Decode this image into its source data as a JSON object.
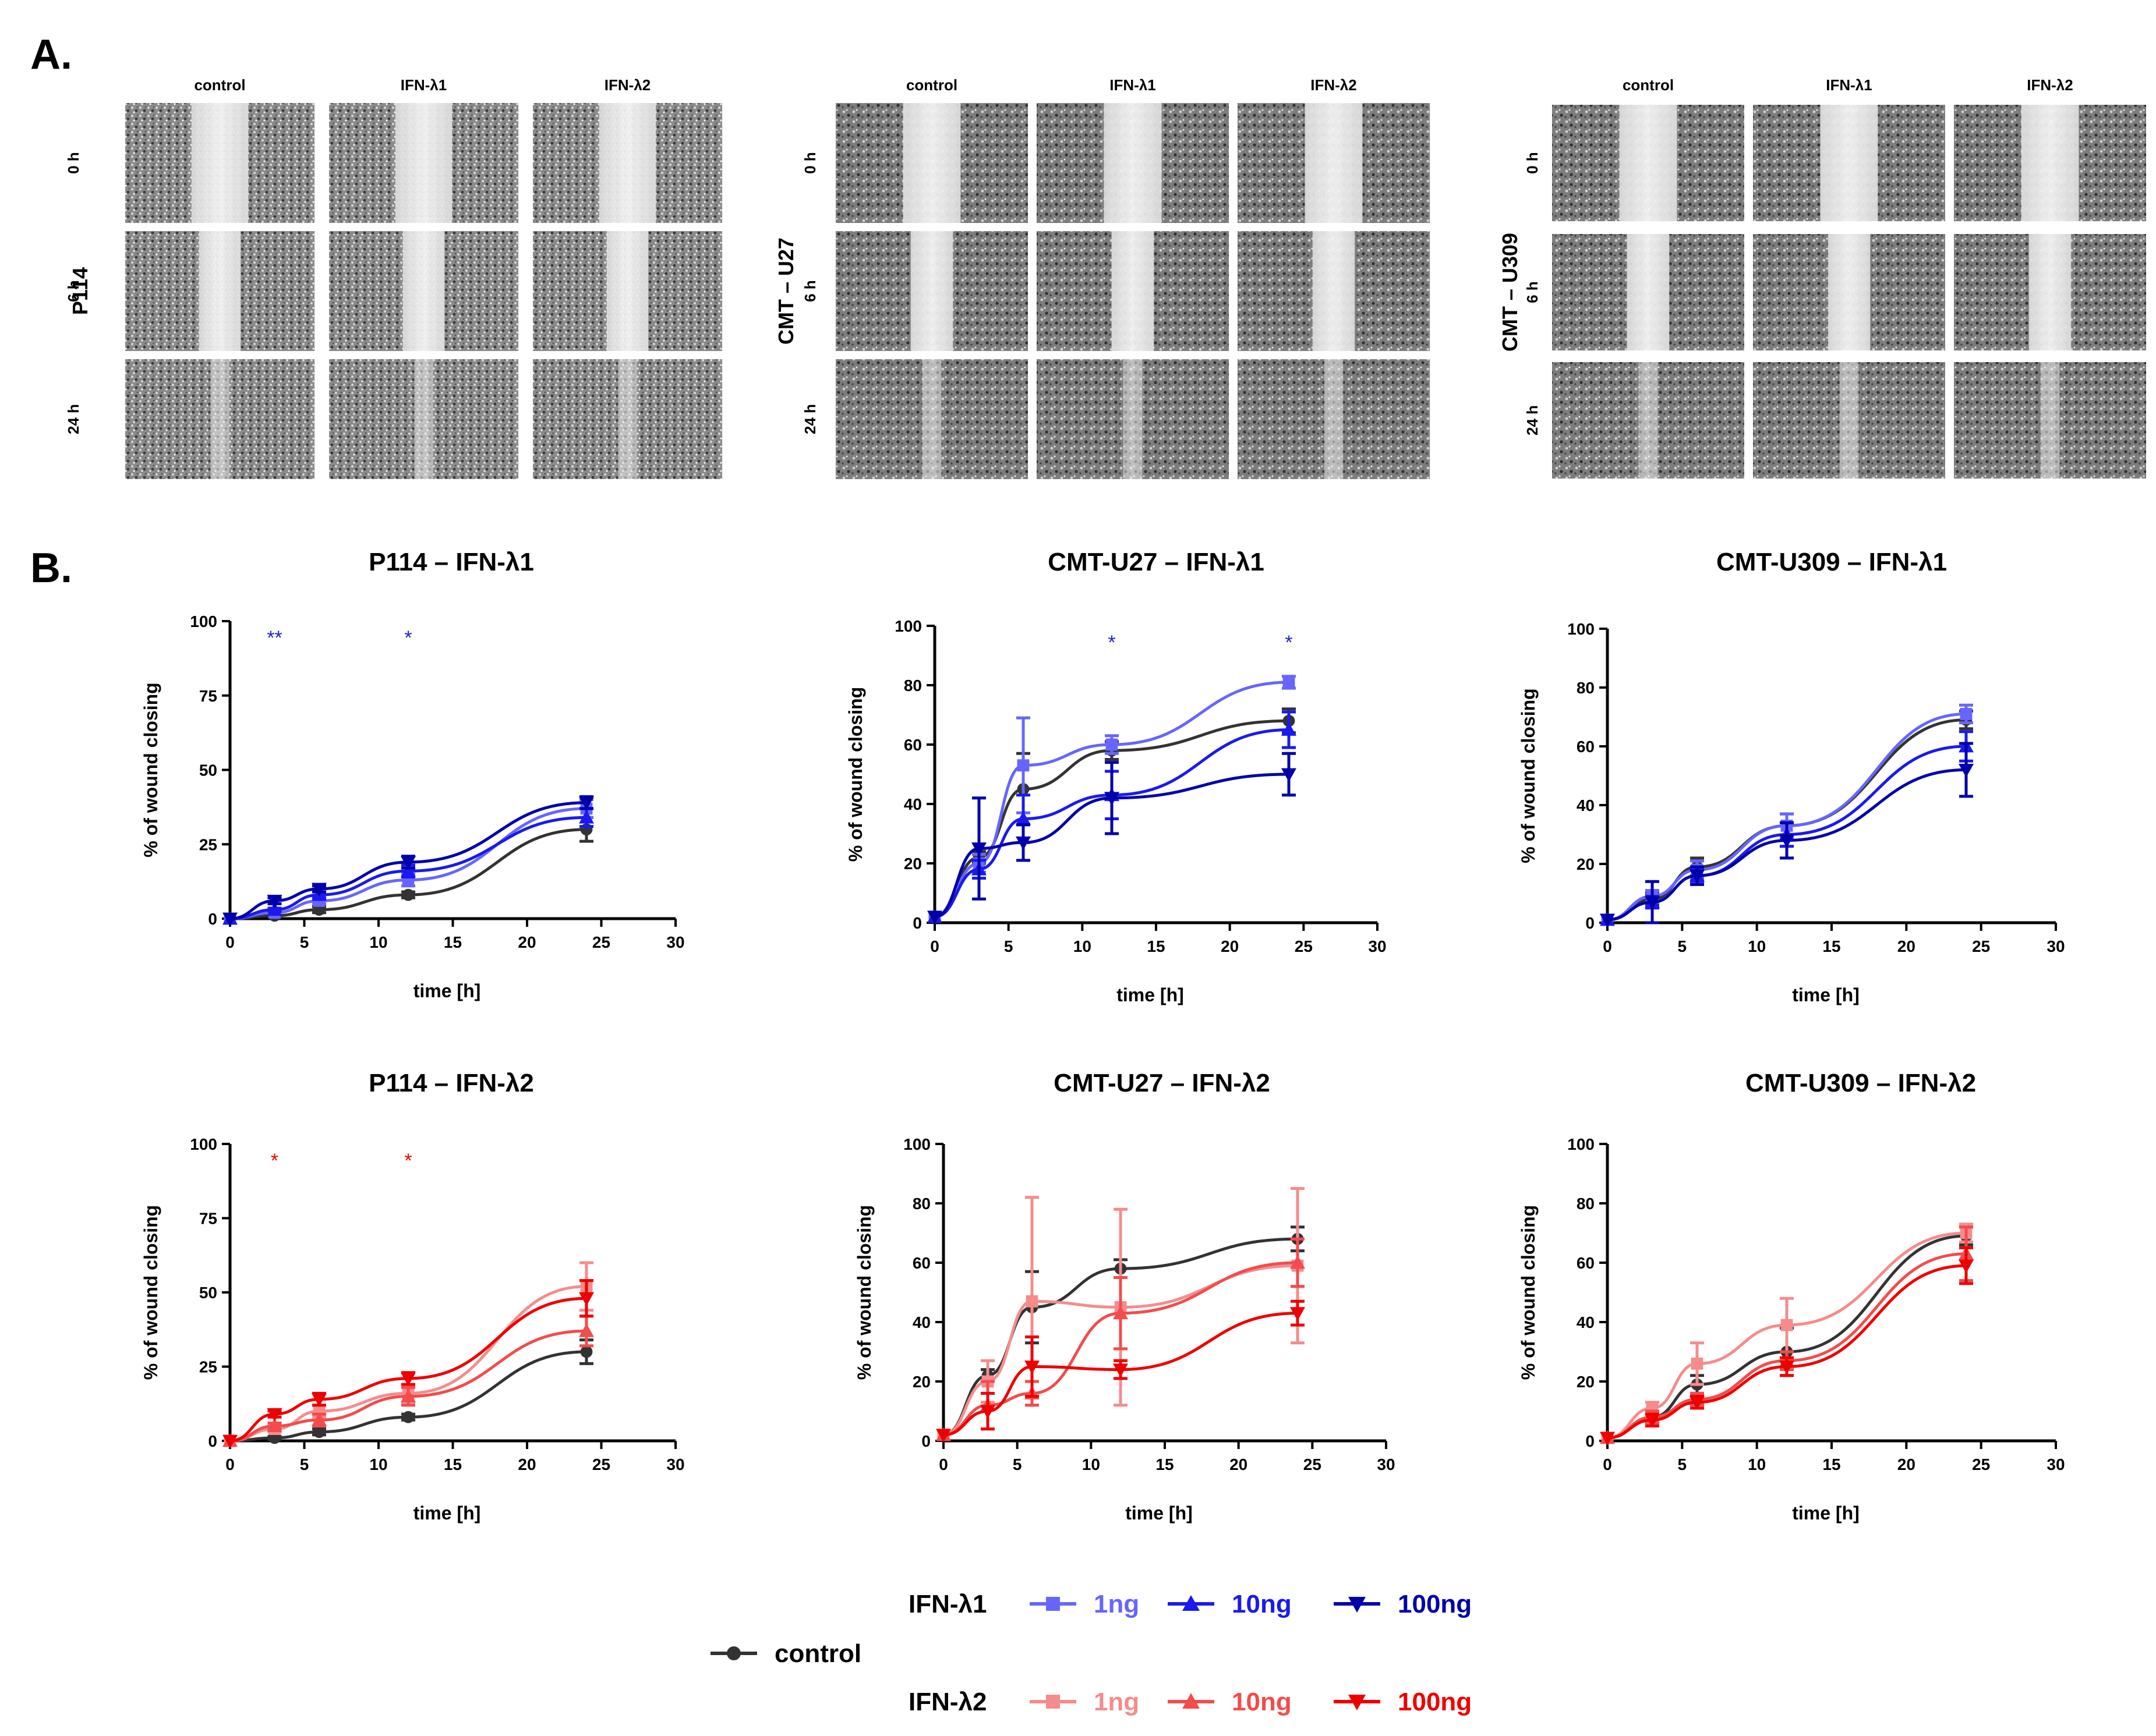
{
  "panel_a": {
    "label": "A.",
    "conditions": [
      "control",
      "IFN-λ1",
      "IFN-λ2"
    ],
    "timepoints": [
      "0 h",
      "6 h",
      "24 h"
    ],
    "cell_lines": [
      "P114",
      "CMT – U27",
      "CMT – U309"
    ]
  },
  "panel_b": {
    "label": "B."
  },
  "colors": {
    "control": "#333333",
    "l1_1ng": "#6666ff",
    "l1_10ng": "#1a1aee",
    "l1_100ng": "#0000aa",
    "l2_1ng": "#f58c8c",
    "l2_10ng": "#f24c4c",
    "l2_100ng": "#ee0000"
  },
  "legend": {
    "control_label": "control",
    "ifn1_label": "IFN-λ1",
    "ifn2_label": "IFN-λ2",
    "dose_1": "1ng",
    "dose_10": "10ng",
    "dose_100": "100ng"
  },
  "chart_data": [
    {
      "type": "line",
      "title": "P114 – IFN-λ1",
      "xlabel": "time [h]",
      "ylabel": "% of wound closing",
      "xlim": [
        0,
        30
      ],
      "ylim": [
        0,
        100
      ],
      "xticks": [
        0,
        5,
        10,
        15,
        20,
        25,
        30
      ],
      "yticks": [
        0,
        25,
        50,
        75,
        100
      ],
      "significance": [
        {
          "x": 3,
          "label": "**",
          "color": "#2222cc"
        },
        {
          "x": 12,
          "label": "*",
          "color": "#2222cc"
        }
      ],
      "series": [
        {
          "name": "control",
          "marker": "circle",
          "color_key": "control",
          "x": [
            0,
            3,
            6,
            12,
            24
          ],
          "y": [
            0,
            1,
            3,
            8,
            30
          ],
          "err": [
            0,
            0.5,
            1,
            1,
            4
          ]
        },
        {
          "name": "IFN-λ1 1ng",
          "marker": "square",
          "color_key": "l1_1ng",
          "x": [
            0,
            3,
            6,
            12,
            24
          ],
          "y": [
            0,
            2,
            6,
            13,
            37
          ],
          "err": [
            0,
            0.5,
            1,
            2,
            3
          ]
        },
        {
          "name": "IFN-λ1 10ng",
          "marker": "triangle-up",
          "color_key": "l1_10ng",
          "x": [
            0,
            3,
            6,
            12,
            24
          ],
          "y": [
            0,
            3,
            8,
            16,
            34
          ],
          "err": [
            0,
            0.5,
            1,
            2,
            3
          ]
        },
        {
          "name": "IFN-λ1 100ng",
          "marker": "triangle-down",
          "color_key": "l1_100ng",
          "x": [
            0,
            3,
            6,
            12,
            24
          ],
          "y": [
            0,
            6,
            10,
            19,
            39
          ],
          "err": [
            0,
            1,
            1,
            2,
            2
          ]
        }
      ]
    },
    {
      "type": "line",
      "title": "CMT-U27 – IFN-λ1",
      "xlabel": "time [h]",
      "ylabel": "% of wound closing",
      "xlim": [
        0,
        30
      ],
      "ylim": [
        0,
        100
      ],
      "xticks": [
        0,
        5,
        10,
        15,
        20,
        25,
        30
      ],
      "yticks": [
        0,
        20,
        40,
        60,
        80,
        100
      ],
      "significance": [
        {
          "x": 12,
          "label": "*",
          "color": "#2222cc"
        },
        {
          "x": 24,
          "label": "*",
          "color": "#2222cc"
        }
      ],
      "series": [
        {
          "name": "control",
          "marker": "circle",
          "color_key": "control",
          "x": [
            0,
            3,
            6,
            12,
            24
          ],
          "y": [
            2,
            22,
            45,
            58,
            68
          ],
          "err": [
            0,
            2,
            12,
            3,
            4
          ]
        },
        {
          "name": "IFN-λ1 1ng",
          "marker": "square",
          "color_key": "l1_1ng",
          "x": [
            0,
            3,
            6,
            12,
            24
          ],
          "y": [
            2,
            20,
            53,
            60,
            81
          ],
          "err": [
            0,
            3,
            16,
            3,
            2
          ]
        },
        {
          "name": "IFN-λ1 10ng",
          "marker": "triangle-up",
          "color_key": "l1_10ng",
          "x": [
            0,
            3,
            6,
            12,
            24
          ],
          "y": [
            2,
            18,
            35,
            43,
            65
          ],
          "err": [
            0,
            3,
            8,
            8,
            6
          ]
        },
        {
          "name": "IFN-λ1 100ng",
          "marker": "triangle-down",
          "color_key": "l1_100ng",
          "x": [
            0,
            3,
            6,
            12,
            24
          ],
          "y": [
            2,
            25,
            27,
            42,
            50
          ],
          "err": [
            0,
            17,
            6,
            12,
            7
          ]
        }
      ]
    },
    {
      "type": "line",
      "title": "CMT-U309 – IFN-λ1",
      "xlabel": "time [h]",
      "ylabel": "% of wound closing",
      "xlim": [
        0,
        30
      ],
      "ylim": [
        0,
        100
      ],
      "xticks": [
        0,
        5,
        10,
        15,
        20,
        25,
        30
      ],
      "yticks": [
        0,
        20,
        40,
        60,
        80,
        100
      ],
      "significance": [],
      "series": [
        {
          "name": "control",
          "marker": "circle",
          "color_key": "control",
          "x": [
            0,
            3,
            6,
            12,
            24
          ],
          "y": [
            1,
            8,
            19,
            33,
            69
          ],
          "err": [
            0,
            2,
            3,
            4,
            3
          ]
        },
        {
          "name": "IFN-λ1 1ng",
          "marker": "square",
          "color_key": "l1_1ng",
          "x": [
            0,
            3,
            6,
            12,
            24
          ],
          "y": [
            1,
            9,
            18,
            33,
            71
          ],
          "err": [
            0,
            2,
            3,
            4,
            3
          ]
        },
        {
          "name": "IFN-λ1 10ng",
          "marker": "triangle-up",
          "color_key": "l1_10ng",
          "x": [
            0,
            3,
            6,
            12,
            24
          ],
          "y": [
            1,
            7,
            16,
            30,
            60
          ],
          "err": [
            0,
            2,
            2,
            4,
            5
          ]
        },
        {
          "name": "IFN-λ1 100ng",
          "marker": "triangle-down",
          "color_key": "l1_100ng",
          "x": [
            0,
            3,
            6,
            12,
            24
          ],
          "y": [
            1,
            7,
            16,
            28,
            52
          ],
          "err": [
            0,
            7,
            3,
            6,
            9
          ]
        }
      ]
    },
    {
      "type": "line",
      "title": "P114 – IFN-λ2",
      "xlabel": "time [h]",
      "ylabel": "% of wound closing",
      "xlim": [
        0,
        30
      ],
      "ylim": [
        0,
        100
      ],
      "xticks": [
        0,
        5,
        10,
        15,
        20,
        25,
        30
      ],
      "yticks": [
        0,
        25,
        50,
        75,
        100
      ],
      "significance": [
        {
          "x": 3,
          "label": "*",
          "color": "#ee0000"
        },
        {
          "x": 12,
          "label": "*",
          "color": "#ee0000"
        }
      ],
      "series": [
        {
          "name": "control",
          "marker": "circle",
          "color_key": "control",
          "x": [
            0,
            3,
            6,
            12,
            24
          ],
          "y": [
            0,
            1,
            3,
            8,
            30
          ],
          "err": [
            0,
            0.5,
            1,
            1,
            4
          ]
        },
        {
          "name": "IFN-λ2 1ng",
          "marker": "square",
          "color_key": "l2_1ng",
          "x": [
            0,
            3,
            6,
            12,
            24
          ],
          "y": [
            0,
            4,
            10,
            16,
            52
          ],
          "err": [
            0,
            1,
            2,
            3,
            8
          ]
        },
        {
          "name": "IFN-λ2 10ng",
          "marker": "triangle-up",
          "color_key": "l2_10ng",
          "x": [
            0,
            3,
            6,
            12,
            24
          ],
          "y": [
            0,
            5,
            7,
            15,
            37
          ],
          "err": [
            0,
            1,
            2,
            3,
            5
          ]
        },
        {
          "name": "IFN-λ2 100ng",
          "marker": "triangle-down",
          "color_key": "l2_100ng",
          "x": [
            0,
            3,
            6,
            12,
            24
          ],
          "y": [
            0,
            9,
            14,
            21,
            48
          ],
          "err": [
            0,
            1,
            2,
            2,
            6
          ]
        }
      ]
    },
    {
      "type": "line",
      "title": "CMT-U27 – IFN-λ2",
      "xlabel": "time [h]",
      "ylabel": "% of wound closing",
      "xlim": [
        0,
        30
      ],
      "ylim": [
        0,
        100
      ],
      "xticks": [
        0,
        5,
        10,
        15,
        20,
        25,
        30
      ],
      "yticks": [
        0,
        20,
        40,
        60,
        80,
        100
      ],
      "significance": [],
      "series": [
        {
          "name": "control",
          "marker": "circle",
          "color_key": "control",
          "x": [
            0,
            3,
            6,
            12,
            24
          ],
          "y": [
            2,
            22,
            45,
            58,
            68
          ],
          "err": [
            0,
            2,
            12,
            3,
            4
          ]
        },
        {
          "name": "IFN-λ2 1ng",
          "marker": "square",
          "color_key": "l2_1ng",
          "x": [
            0,
            3,
            6,
            12,
            24
          ],
          "y": [
            2,
            20,
            47,
            45,
            59
          ],
          "err": [
            0,
            7,
            35,
            33,
            26
          ]
        },
        {
          "name": "IFN-λ2 10ng",
          "marker": "triangle-up",
          "color_key": "l2_10ng",
          "x": [
            0,
            3,
            6,
            12,
            24
          ],
          "y": [
            2,
            12,
            16,
            43,
            60
          ],
          "err": [
            0,
            8,
            4,
            12,
            8
          ]
        },
        {
          "name": "IFN-λ2 100ng",
          "marker": "triangle-down",
          "color_key": "l2_100ng",
          "x": [
            0,
            3,
            6,
            12,
            24
          ],
          "y": [
            2,
            10,
            25,
            24,
            43
          ],
          "err": [
            0,
            6,
            10,
            3,
            4
          ]
        }
      ]
    },
    {
      "type": "line",
      "title": "CMT-U309 – IFN-λ2",
      "xlabel": "time [h]",
      "ylabel": "% of wound closing",
      "xlim": [
        0,
        30
      ],
      "ylim": [
        0,
        100
      ],
      "xticks": [
        0,
        5,
        10,
        15,
        20,
        25,
        30
      ],
      "yticks": [
        0,
        20,
        40,
        60,
        80,
        100
      ],
      "significance": [],
      "series": [
        {
          "name": "control",
          "marker": "circle",
          "color_key": "control",
          "x": [
            0,
            3,
            6,
            12,
            24
          ],
          "y": [
            1,
            8,
            19,
            30,
            69
          ],
          "err": [
            0,
            2,
            3,
            8,
            3
          ]
        },
        {
          "name": "IFN-λ2 1ng",
          "marker": "square",
          "color_key": "l2_1ng",
          "x": [
            0,
            3,
            6,
            12,
            24
          ],
          "y": [
            1,
            11,
            26,
            39,
            70
          ],
          "err": [
            0,
            2,
            7,
            9,
            3
          ]
        },
        {
          "name": "IFN-λ2 10ng",
          "marker": "triangle-up",
          "color_key": "l2_10ng",
          "x": [
            0,
            3,
            6,
            12,
            24
          ],
          "y": [
            1,
            8,
            14,
            27,
            63
          ],
          "err": [
            0,
            2,
            2,
            3,
            9
          ]
        },
        {
          "name": "IFN-λ2 100ng",
          "marker": "triangle-down",
          "color_key": "l2_100ng",
          "x": [
            0,
            3,
            6,
            12,
            24
          ],
          "y": [
            1,
            7,
            13,
            25,
            59
          ],
          "err": [
            0,
            2,
            2,
            3,
            6
          ]
        }
      ]
    }
  ]
}
